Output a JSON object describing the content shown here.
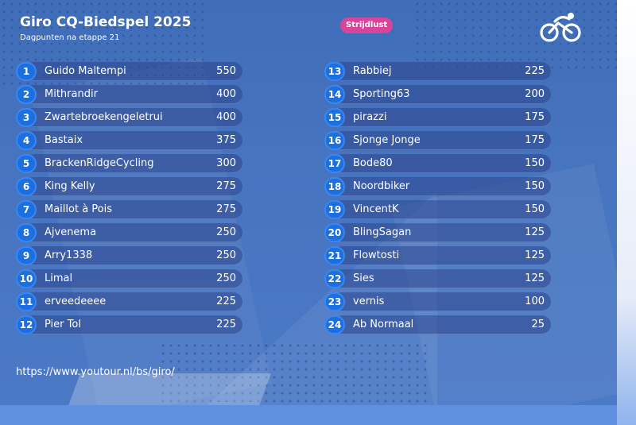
{
  "header": {
    "title": "Giro CQ-Biedspel 2025",
    "subtitle": "Dagpunten na etappe 21",
    "badge": "Strijdlust",
    "logo_icon": "cyclist-logo-icon"
  },
  "colors": {
    "background": "#4774bf",
    "badge": "#d9449a",
    "rank_circle": "#1b6fe0"
  },
  "standings_left": [
    {
      "rank": "1",
      "name": "Guido Maltempi",
      "points": "550"
    },
    {
      "rank": "2",
      "name": "Mithrandir",
      "points": "400"
    },
    {
      "rank": "3",
      "name": "Zwartebroekengeletrui",
      "points": "400"
    },
    {
      "rank": "4",
      "name": "Bastaix",
      "points": "375"
    },
    {
      "rank": "5",
      "name": "BrackenRidgeCycling",
      "points": "300"
    },
    {
      "rank": "6",
      "name": "King Kelly",
      "points": "275"
    },
    {
      "rank": "7",
      "name": "Maillot à Pois",
      "points": "275"
    },
    {
      "rank": "8",
      "name": "Ajvenema",
      "points": "250"
    },
    {
      "rank": "9",
      "name": "Arry1338",
      "points": "250"
    },
    {
      "rank": "10",
      "name": "Limal",
      "points": "250"
    },
    {
      "rank": "11",
      "name": "erveedeeee",
      "points": "225"
    },
    {
      "rank": "12",
      "name": "Pier Tol",
      "points": "225"
    }
  ],
  "standings_right": [
    {
      "rank": "13",
      "name": "Rabbiej",
      "points": "225"
    },
    {
      "rank": "14",
      "name": "Sporting63",
      "points": "200"
    },
    {
      "rank": "15",
      "name": "pirazzi",
      "points": "175"
    },
    {
      "rank": "16",
      "name": "Sjonge Jonge",
      "points": "175"
    },
    {
      "rank": "17",
      "name": "Bode80",
      "points": "150"
    },
    {
      "rank": "18",
      "name": "Noordbiker",
      "points": "150"
    },
    {
      "rank": "19",
      "name": "VincentK",
      "points": "150"
    },
    {
      "rank": "20",
      "name": "BlingSagan",
      "points": "125"
    },
    {
      "rank": "21",
      "name": "Flowtosti",
      "points": "125"
    },
    {
      "rank": "22",
      "name": "Sies",
      "points": "125"
    },
    {
      "rank": "23",
      "name": "vernis",
      "points": "100"
    },
    {
      "rank": "24",
      "name": "Ab Normaal",
      "points": "25"
    }
  ],
  "footer": {
    "url": "https://www.youtour.nl/bs/giro/"
  }
}
